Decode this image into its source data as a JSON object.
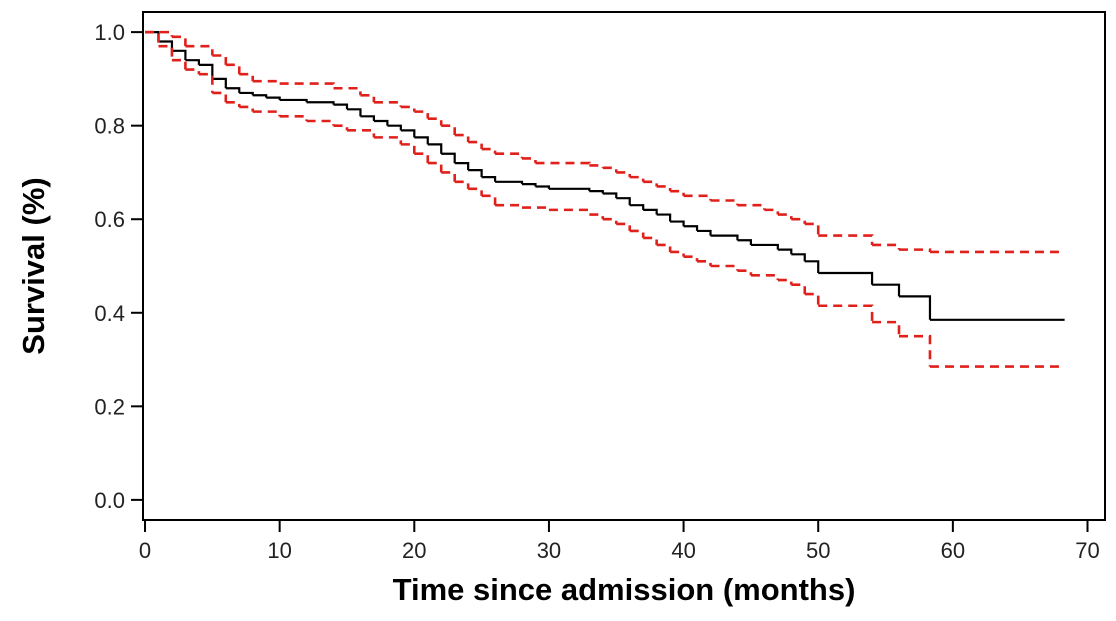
{
  "chart_data": {
    "type": "step",
    "x_label": "Time since admission (months)",
    "y_label": "Survival (%)",
    "xlim": [
      -0.15,
      71.3
    ],
    "ylim": [
      -0.043,
      1.043
    ],
    "xticks": [
      0,
      10,
      20,
      30,
      40,
      50,
      60,
      70
    ],
    "yticks": [
      {
        "value": 0,
        "label": "0.0"
      },
      0.2,
      0.4,
      0.6,
      0.8,
      {
        "value": 1,
        "label": "1.0"
      }
    ],
    "series": [
      {
        "color": "#000000",
        "style": "solid",
        "x": [
          0,
          1,
          2,
          3,
          4,
          5,
          6,
          7,
          8,
          9,
          10,
          12,
          14,
          15,
          16,
          17,
          18,
          19,
          20,
          21,
          22,
          23,
          24,
          25,
          26,
          28,
          29,
          30,
          33,
          34,
          35,
          36,
          37,
          38,
          39,
          40,
          41,
          42,
          44,
          45,
          47,
          48,
          49,
          50,
          54,
          56,
          58.3,
          68.3
        ],
        "values": [
          1.0,
          0.98,
          0.96,
          0.94,
          0.93,
          0.9,
          0.88,
          0.87,
          0.865,
          0.86,
          0.855,
          0.85,
          0.845,
          0.835,
          0.82,
          0.81,
          0.8,
          0.79,
          0.775,
          0.76,
          0.74,
          0.72,
          0.705,
          0.69,
          0.68,
          0.675,
          0.67,
          0.665,
          0.66,
          0.655,
          0.645,
          0.63,
          0.62,
          0.61,
          0.595,
          0.585,
          0.575,
          0.565,
          0.555,
          0.545,
          0.535,
          0.525,
          0.51,
          0.485,
          0.46,
          0.435,
          0.385,
          0.385
        ]
      },
      {
        "color": "#e0201b",
        "style": "dashed",
        "x": [
          0,
          2,
          3,
          5,
          6,
          7,
          8,
          10,
          14,
          16,
          17,
          19,
          20,
          21,
          22,
          23,
          24,
          25,
          26,
          28,
          29,
          33,
          34,
          35,
          36,
          37,
          38,
          39,
          40,
          42,
          44,
          46,
          47,
          48,
          49,
          50,
          54,
          56,
          58.3,
          68.3
        ],
        "values": [
          1.0,
          0.99,
          0.97,
          0.95,
          0.93,
          0.91,
          0.895,
          0.89,
          0.88,
          0.865,
          0.85,
          0.84,
          0.83,
          0.815,
          0.8,
          0.78,
          0.765,
          0.75,
          0.74,
          0.73,
          0.72,
          0.715,
          0.71,
          0.7,
          0.69,
          0.68,
          0.67,
          0.66,
          0.65,
          0.64,
          0.63,
          0.62,
          0.61,
          0.6,
          0.59,
          0.565,
          0.545,
          0.535,
          0.53,
          0.53
        ]
      },
      {
        "color": "#e0201b",
        "style": "dashed",
        "x": [
          0,
          1,
          2,
          3,
          4,
          5,
          6,
          7,
          8,
          10,
          12,
          14,
          15,
          17,
          19,
          20,
          21,
          22,
          23,
          24,
          25,
          26,
          28,
          30,
          33,
          34,
          35,
          36,
          37,
          38,
          39,
          40,
          41,
          42,
          44,
          45,
          47,
          48,
          49,
          50,
          54,
          56,
          58.3,
          68.3
        ],
        "values": [
          1.0,
          0.97,
          0.94,
          0.92,
          0.91,
          0.87,
          0.85,
          0.84,
          0.83,
          0.82,
          0.81,
          0.8,
          0.79,
          0.775,
          0.76,
          0.74,
          0.72,
          0.7,
          0.68,
          0.665,
          0.65,
          0.63,
          0.625,
          0.62,
          0.61,
          0.6,
          0.59,
          0.575,
          0.56,
          0.545,
          0.53,
          0.52,
          0.51,
          0.5,
          0.49,
          0.48,
          0.47,
          0.46,
          0.44,
          0.415,
          0.38,
          0.35,
          0.285,
          0.285
        ]
      }
    ]
  }
}
